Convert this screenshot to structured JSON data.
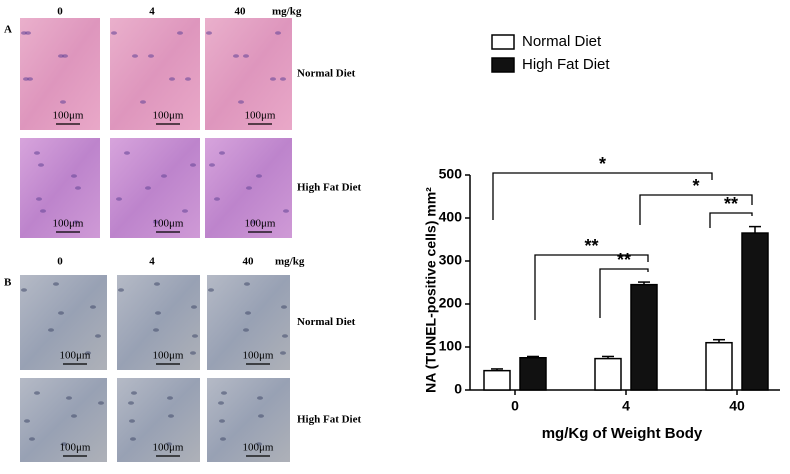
{
  "panels": [
    {
      "label": "A",
      "columns": [
        "0",
        "4",
        "40"
      ],
      "unit": "mg/kg",
      "rows": [
        "Normal Diet",
        "High Fat Diet"
      ],
      "scale": "100μm"
    },
    {
      "label": "B",
      "columns": [
        "0",
        "4",
        "40"
      ],
      "unit": "mg/kg",
      "rows": [
        "Normal Diet",
        "High Fat Diet"
      ],
      "scale": "100μm"
    }
  ],
  "chart_data": {
    "type": "bar",
    "xlabel": "mg/Kg of Weight Body",
    "ylabel": "NA (TUNEL-positive cells) mm²",
    "categories": [
      "0",
      "4",
      "40"
    ],
    "series": [
      {
        "name": "Normal Diet",
        "color": "#ffffff",
        "values": [
          45,
          73,
          110
        ],
        "errors": [
          4,
          5,
          7
        ]
      },
      {
        "name": "High Fat Diet",
        "color": "#111111",
        "values": [
          75,
          245,
          365
        ],
        "errors": [
          3,
          6,
          15
        ]
      }
    ],
    "ylim": [
      0,
      500
    ],
    "yticks": [
      0,
      100,
      200,
      300,
      400,
      500
    ],
    "annotations": [
      "*",
      "*",
      "**",
      "**",
      "**"
    ]
  }
}
